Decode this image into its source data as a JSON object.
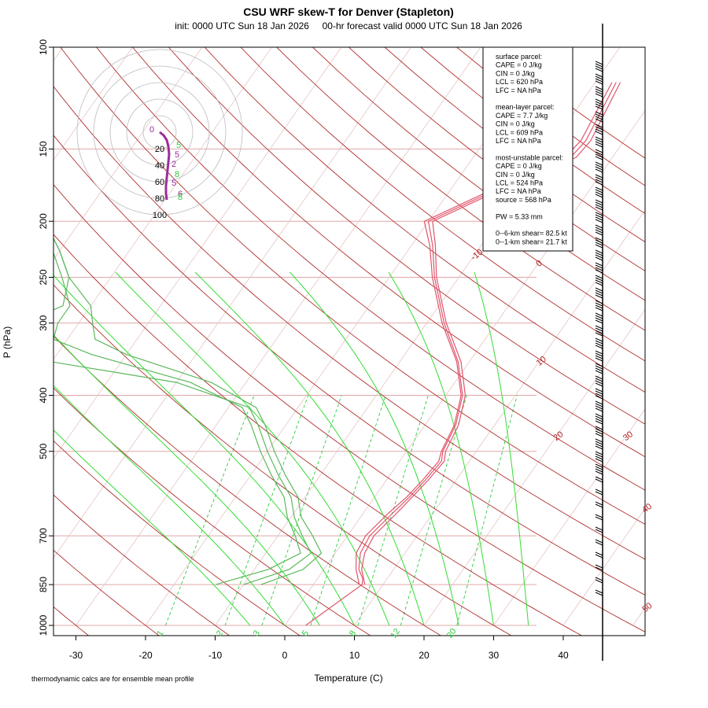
{
  "chart_data": {
    "type": "line",
    "title": "CSU WRF skew-T for Denver (Stapleton)",
    "subtitle": "init: 0000 UTC Sun 18 Jan 2026     00-hr forecast valid 0000 UTC Sun 18 Jan 2026",
    "xlabel": "Temperature (C)",
    "ylabel": "P (hPa)",
    "footnote": "thermodynamic calcs are for ensemble mean profile",
    "x_ticks": [
      "-30",
      "-20",
      "-10",
      "0",
      "10",
      "20",
      "30",
      "40"
    ],
    "x_tick_values": [
      -30,
      -20,
      -10,
      0,
      10,
      20,
      30,
      40
    ],
    "y_ticks": [
      "100",
      "150",
      "200",
      "250",
      "300",
      "400",
      "500",
      "700",
      "850",
      "1000"
    ],
    "y_tick_values": [
      100,
      150,
      200,
      250,
      300,
      400,
      500,
      700,
      850,
      1000
    ],
    "ylim": [
      1000,
      100
    ],
    "y_scale": "log",
    "isotherm_labels": [
      {
        "text": "-10",
        "value": -10
      },
      {
        "text": "0",
        "value": 0
      },
      {
        "text": "10",
        "value": 10
      },
      {
        "text": "20",
        "value": 20
      },
      {
        "text": "30",
        "value": 30
      },
      {
        "text": "40",
        "value": 40
      },
      {
        "text": "50",
        "value": 50
      }
    ],
    "mixing_ratio_labels": [
      {
        "text": "1",
        "value": 1
      },
      {
        "text": "2",
        "value": 2
      },
      {
        "text": "3",
        "value": 3
      },
      {
        "text": "5",
        "value": 5
      },
      {
        "text": "8",
        "value": 8
      },
      {
        "text": "12",
        "value": 12
      },
      {
        "text": "20",
        "value": 20
      }
    ],
    "series": [
      {
        "name": "",
        "kind": "temperature",
        "color": "#e0556b",
        "points": [
          [
            1000,
            3
          ],
          [
            850,
            7
          ],
          [
            830,
            6.5
          ],
          [
            800,
            5
          ],
          [
            750,
            3.6
          ],
          [
            700,
            3.2
          ],
          [
            640,
            4.2
          ],
          [
            600,
            5
          ],
          [
            560,
            5.6
          ],
          [
            520,
            6
          ],
          [
            500,
            5.2
          ],
          [
            450,
            4.4
          ],
          [
            400,
            2.4
          ],
          [
            350,
            -1.6
          ],
          [
            300,
            -7.5
          ],
          [
            250,
            -13.5
          ],
          [
            220,
            -17
          ],
          [
            200,
            -20
          ],
          [
            175,
            -13
          ],
          [
            155,
            -6
          ],
          [
            145,
            -5.5
          ],
          [
            115,
            -7
          ]
        ]
      },
      {
        "name": "",
        "kind": "temperature",
        "color": "#e0556b",
        "points": [
          [
            850,
            6.6
          ],
          [
            800,
            4.6
          ],
          [
            750,
            3
          ],
          [
            700,
            2.6
          ],
          [
            640,
            3.6
          ],
          [
            600,
            4.6
          ],
          [
            560,
            5.2
          ],
          [
            520,
            5.6
          ],
          [
            500,
            5.0
          ],
          [
            450,
            4.2
          ],
          [
            400,
            2.2
          ],
          [
            350,
            -1.8
          ],
          [
            300,
            -7.8
          ],
          [
            250,
            -13.8
          ],
          [
            220,
            -17.4
          ],
          [
            200,
            -20.6
          ],
          [
            175,
            -13.6
          ],
          [
            155,
            -6.8
          ],
          [
            145,
            -6.2
          ],
          [
            115,
            -7.6
          ]
        ]
      },
      {
        "name": "",
        "kind": "temperature",
        "color": "#e0556b",
        "points": [
          [
            850,
            7.4
          ],
          [
            800,
            5.4
          ],
          [
            750,
            4.2
          ],
          [
            700,
            3.8
          ],
          [
            640,
            4.8
          ],
          [
            600,
            5.4
          ],
          [
            560,
            6
          ],
          [
            520,
            6.4
          ],
          [
            500,
            5.6
          ],
          [
            450,
            4.8
          ],
          [
            400,
            2.8
          ],
          [
            350,
            -1.2
          ],
          [
            300,
            -7.2
          ],
          [
            250,
            -13.2
          ],
          [
            220,
            -16.6
          ],
          [
            200,
            -19.4
          ],
          [
            175,
            -12.4
          ],
          [
            155,
            -5.2
          ],
          [
            145,
            -4.8
          ],
          [
            115,
            -6.4
          ]
        ]
      },
      {
        "name": "",
        "kind": "dewpoint",
        "color": "#5cb85c",
        "points": [
          [
            850,
            -7.5
          ],
          [
            800,
            -3
          ],
          [
            750,
            -2
          ],
          [
            700,
            -5
          ],
          [
            650,
            -8.5
          ],
          [
            600,
            -11
          ],
          [
            550,
            -15
          ],
          [
            500,
            -19
          ],
          [
            450,
            -23
          ],
          [
            420,
            -26
          ],
          [
            380,
            -35
          ],
          [
            340,
            -50
          ],
          [
            320,
            -56
          ],
          [
            300,
            -58
          ],
          [
            280,
            -60
          ],
          [
            250,
            -66
          ],
          [
            225,
            -70
          ],
          [
            205,
            -74
          ]
        ]
      },
      {
        "name": "",
        "kind": "dewpoint",
        "color": "#5cb85c",
        "points": [
          [
            850,
            -10
          ],
          [
            800,
            -5
          ],
          [
            750,
            -3.5
          ],
          [
            700,
            -6.5
          ],
          [
            650,
            -9.5
          ],
          [
            600,
            -12
          ],
          [
            550,
            -16
          ],
          [
            500,
            -20
          ],
          [
            450,
            -24
          ],
          [
            420,
            -27
          ],
          [
            380,
            -40
          ],
          [
            350,
            -60
          ],
          [
            330,
            -70
          ],
          [
            300,
            -68
          ],
          [
            280,
            -64
          ],
          [
            250,
            -66
          ],
          [
            225,
            -70
          ],
          [
            205,
            -74
          ]
        ]
      },
      {
        "name": "",
        "kind": "dewpoint",
        "color": "#5cb85c",
        "points": [
          [
            850,
            -14
          ],
          [
            800,
            -8
          ],
          [
            750,
            -5
          ],
          [
            700,
            -7.5
          ],
          [
            650,
            -10.5
          ],
          [
            600,
            -13
          ],
          [
            550,
            -17
          ],
          [
            500,
            -21
          ],
          [
            450,
            -25
          ],
          [
            420,
            -28
          ],
          [
            380,
            -38
          ],
          [
            340,
            -55
          ],
          [
            320,
            -62
          ],
          [
            300,
            -63
          ],
          [
            280,
            -63
          ],
          [
            250,
            -67
          ],
          [
            225,
            -71
          ],
          [
            205,
            -75
          ]
        ]
      }
    ],
    "hodograph": {
      "ring_labels": [
        "20",
        "40",
        "60",
        "80",
        "100"
      ],
      "ring_values": [
        20,
        40,
        60,
        80,
        100
      ],
      "point_labels": [
        {
          "text": "0",
          "color": "#9b2d9b"
        },
        {
          "text": "5",
          "color": "#2ecc40"
        },
        {
          "text": "5",
          "color": "#9b2d9b"
        },
        {
          "text": "8",
          "color": "#2ecc40"
        },
        {
          "text": "2",
          "color": "#9b2d9b"
        },
        {
          "text": "5",
          "color": "#9b2d9b"
        },
        {
          "text": "6",
          "color": "#9b2d9b"
        },
        {
          "text": "8",
          "color": "#2ecc40"
        }
      ]
    },
    "stats_box": [
      "surface parcel:",
      "CAPE = 0 J/kg",
      "CIN = 0 J/kg",
      "LCL = 620 hPa",
      "LFC = NA hPa",
      "",
      "mean-layer parcel:",
      "CAPE = 7.7 J/kg",
      "CIN = 0 J/kg",
      "LCL = 609 hPa",
      "LFC = NA hPa",
      "",
      "most-unstable parcel:",
      "CAPE = 0 J/kg",
      "CIN = 0 J/kg",
      "LCL = 524 hPa",
      "LFC = NA hPa",
      "source = 568 hPa",
      "",
      "PW =  5.33 mm",
      "",
      "0--6-km shear= 82.5 kt",
      "0--1-km shear= 21.7 kt"
    ],
    "colors": {
      "isotherm": "#b03030",
      "mixing_ratio": "#2ecc40",
      "dry_adiabat": "#b03030",
      "temperature": "#e0556b",
      "dewpoint": "#5cb85c",
      "wind_barb": "#000000"
    }
  }
}
